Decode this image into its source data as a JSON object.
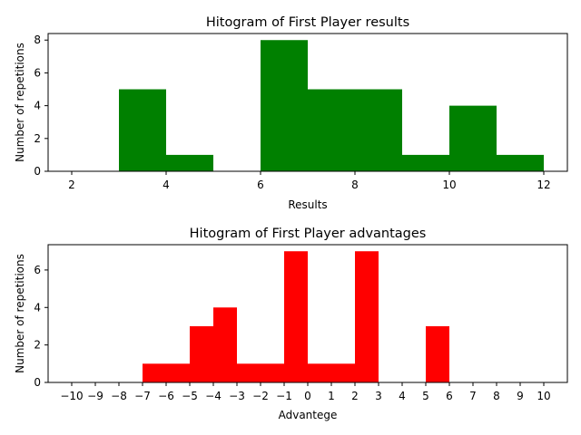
{
  "chart_data": [
    {
      "type": "bar",
      "title": "Hitogram of First Player results",
      "xlabel": "Results",
      "ylabel": "Number of repetitions",
      "xlim": [
        1.5,
        12.5
      ],
      "ylim": [
        0,
        8.4
      ],
      "xticks": [
        "2",
        "4",
        "6",
        "8",
        "10",
        "12"
      ],
      "yticks": [
        "0",
        "2",
        "4",
        "6",
        "8"
      ],
      "color": "#008000",
      "bins": [
        {
          "start": 2,
          "end": 3,
          "value": 0
        },
        {
          "start": 3,
          "end": 4,
          "value": 5
        },
        {
          "start": 4,
          "end": 5,
          "value": 1
        },
        {
          "start": 5,
          "end": 6,
          "value": 0
        },
        {
          "start": 6,
          "end": 7,
          "value": 8
        },
        {
          "start": 7,
          "end": 8,
          "value": 5
        },
        {
          "start": 8,
          "end": 9,
          "value": 5
        },
        {
          "start": 9,
          "end": 10,
          "value": 1
        },
        {
          "start": 10,
          "end": 11,
          "value": 4
        },
        {
          "start": 11,
          "end": 12,
          "value": 1
        }
      ],
      "grid": false
    },
    {
      "type": "bar",
      "title": "Hitogram of First Player advantages",
      "xlabel": "Advantege",
      "ylabel": "Number of repetitions",
      "xlim": [
        -11,
        11
      ],
      "ylim": [
        0,
        7.35
      ],
      "xticks": [
        "−10",
        "−9",
        "−8",
        "−7",
        "−6",
        "−5",
        "−4",
        "−3",
        "−2",
        "−1",
        "0",
        "1",
        "2",
        "3",
        "4",
        "5",
        "6",
        "7",
        "8",
        "9",
        "10"
      ],
      "yticks": [
        "0",
        "2",
        "4",
        "6"
      ],
      "color": "#ff0000",
      "bins": [
        {
          "start": -10,
          "end": -9,
          "value": 0
        },
        {
          "start": -9,
          "end": -8,
          "value": 0
        },
        {
          "start": -8,
          "end": -7,
          "value": 0
        },
        {
          "start": -7,
          "end": -6,
          "value": 1
        },
        {
          "start": -6,
          "end": -5,
          "value": 1
        },
        {
          "start": -5,
          "end": -4,
          "value": 3
        },
        {
          "start": -4,
          "end": -3,
          "value": 4
        },
        {
          "start": -3,
          "end": -2,
          "value": 1
        },
        {
          "start": -2,
          "end": -1,
          "value": 1
        },
        {
          "start": -1,
          "end": 0,
          "value": 7
        },
        {
          "start": 0,
          "end": 1,
          "value": 1
        },
        {
          "start": 1,
          "end": 2,
          "value": 1
        },
        {
          "start": 2,
          "end": 3,
          "value": 7
        },
        {
          "start": 3,
          "end": 4,
          "value": 0
        },
        {
          "start": 4,
          "end": 5,
          "value": 0
        },
        {
          "start": 5,
          "end": 6,
          "value": 3
        },
        {
          "start": 6,
          "end": 7,
          "value": 0
        },
        {
          "start": 7,
          "end": 8,
          "value": 0
        },
        {
          "start": 8,
          "end": 9,
          "value": 0
        },
        {
          "start": 9,
          "end": 10,
          "value": 0
        }
      ],
      "grid": false
    }
  ]
}
